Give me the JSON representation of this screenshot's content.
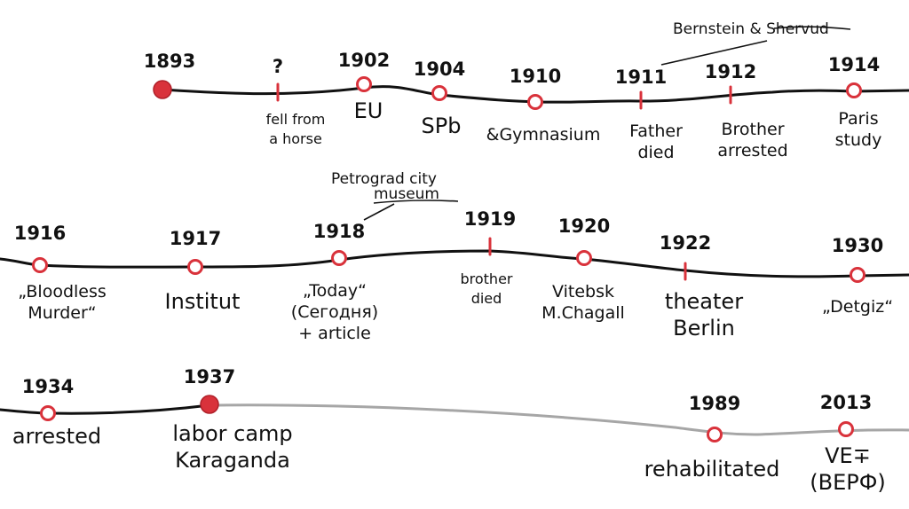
{
  "colors": {
    "line": "#111111",
    "gray_line": "#a6a6a6",
    "accent": "#d9323b"
  },
  "rows": [
    {
      "events": [
        {
          "year": "1893",
          "label": [
            "",
            ""
          ],
          "marker": "dot"
        },
        {
          "year": "?",
          "label": [
            "fell from",
            "a horse"
          ],
          "marker": "tick"
        },
        {
          "year": "1902",
          "label": [
            "EU"
          ],
          "marker": "ring"
        },
        {
          "year": "1904",
          "label": [
            "SPb"
          ],
          "marker": "ring"
        },
        {
          "year": "1910",
          "label": [
            "&Gymnasium"
          ],
          "marker": "ring"
        },
        {
          "year": "1911",
          "label": [
            "Father",
            "died"
          ],
          "marker": "tick"
        },
        {
          "year": "1912",
          "label": [
            "Brother",
            "arrested"
          ],
          "marker": "tick"
        },
        {
          "year": "1914",
          "label": [
            "Paris",
            "study"
          ],
          "marker": "ring"
        }
      ]
    },
    {
      "events": [
        {
          "year": "1916",
          "label": [
            "„Bloodless",
            "Murder“"
          ],
          "marker": "ring"
        },
        {
          "year": "1917",
          "label": [
            "Institut"
          ],
          "marker": "ring"
        },
        {
          "year": "1918",
          "label": [
            "„Today“",
            "(Сегодня)",
            "+ article"
          ],
          "marker": "ring"
        },
        {
          "year": "1919",
          "label": [
            "brother",
            "died"
          ],
          "marker": "tick"
        },
        {
          "year": "1920",
          "label": [
            "Vitebsk",
            "M.Chagall"
          ],
          "marker": "ring"
        },
        {
          "year": "1922",
          "label": [
            "theater",
            "Berlin"
          ],
          "marker": "tick"
        },
        {
          "year": "1930",
          "label": [
            "„Detgiz“"
          ],
          "marker": "ring"
        }
      ]
    },
    {
      "events": [
        {
          "year": "1934",
          "label": [
            "arrested"
          ],
          "marker": "ring"
        },
        {
          "year": "1937",
          "label": [
            "labor camp",
            "Karaganda"
          ],
          "marker": "dot"
        },
        {
          "year": "1989",
          "label": [
            "rehabilitated"
          ],
          "marker": "ring"
        },
        {
          "year": "2013",
          "label": [
            "VE∓",
            "(ВЕРФ)"
          ],
          "marker": "ring"
        }
      ]
    }
  ],
  "annotations": [
    {
      "text": "Bernstein & Shervud"
    },
    {
      "text": "Petrograd city",
      "text2": "museum"
    }
  ]
}
